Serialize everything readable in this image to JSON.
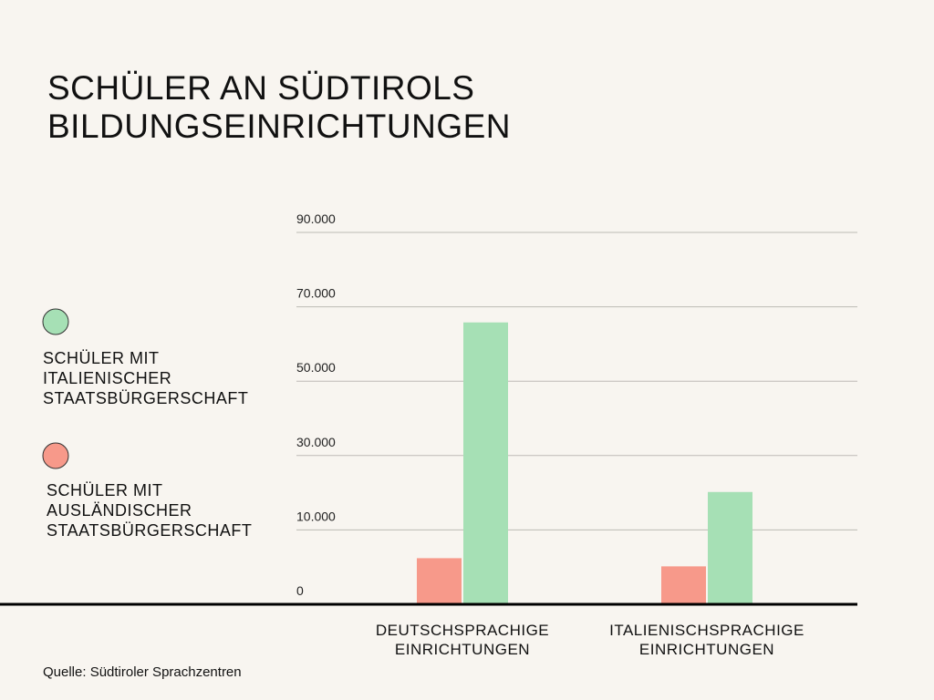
{
  "chart_data": {
    "type": "bar",
    "title": "SCHÜLER AN SÜDTIROLS BILDUNGSEINRICHTUNGEN",
    "source": "Quelle: Südtiroler Sprachzentren",
    "categories": [
      "DEUTSCHSPRACHIGE EINRICHTUNGEN",
      "ITALIENISCHSPRACHIGE EINRICHTUNGEN"
    ],
    "series": [
      {
        "name": "SCHÜLER MIT ITALIENISCHER STAATSBÜRGERSCHAFT",
        "color": "#a6e0b5",
        "values": [
          65800,
          20200
        ]
      },
      {
        "name": "SCHÜLER MIT AUSLÄNDISCHER STAATSBÜRGERSCHAFT",
        "color": "#f7998a",
        "values": [
          6200,
          5100
        ]
      }
    ],
    "ylim": [
      0,
      90000
    ],
    "yticks": [
      0,
      {
        "value": 10000,
        "label": "10.000"
      },
      {
        "value": 30000,
        "label": "30.000"
      },
      {
        "value": 50000,
        "label": "50.000"
      },
      {
        "value": 70000,
        "label": "70.000"
      },
      {
        "value": 90000,
        "label": "90.000"
      }
    ],
    "grid": true
  }
}
